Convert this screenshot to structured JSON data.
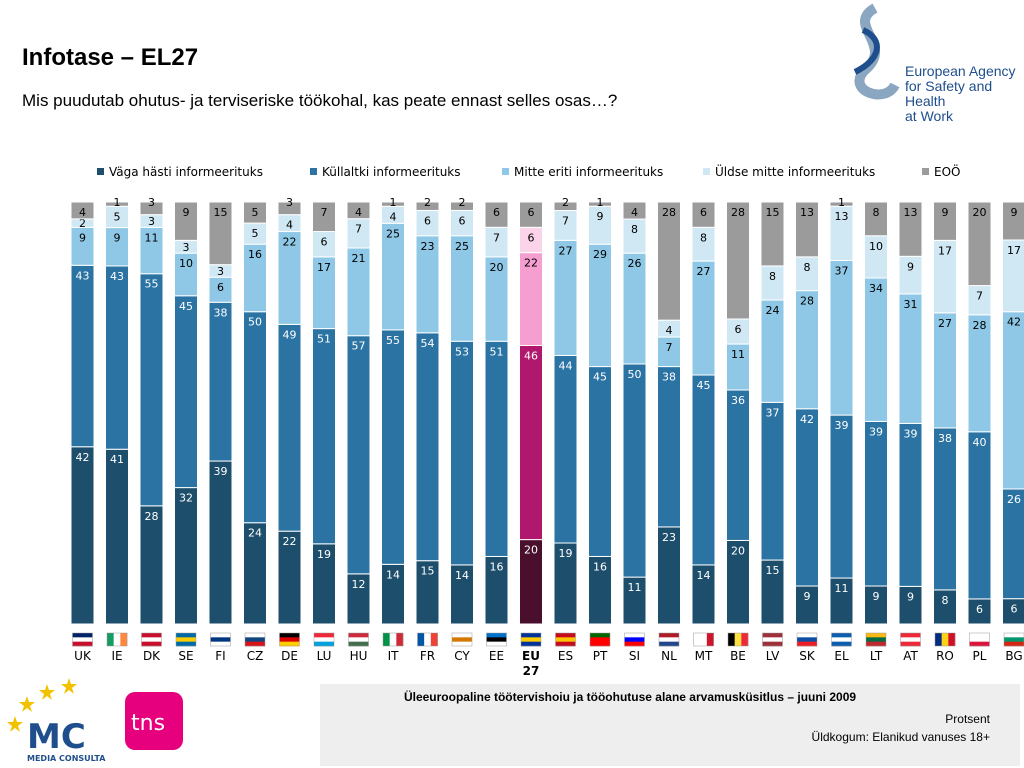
{
  "header": {
    "title": "Infotase – EL27",
    "subtitle": "Mis puudutab ohutus- ja terviseriske töökohal, kas peate ennast selles osas…?"
  },
  "logo": {
    "lines": [
      "European Agency",
      "for Safety and Health",
      "at Work"
    ]
  },
  "footer": {
    "title": "Üleeuroopaline töötervishoiu ja tööohutuse alane arvamusküsitlus – juuni 2009",
    "unit": "Protsent",
    "base": "Üldkogum: Elanikud vanuses 18+",
    "mc_text": "MC",
    "mc_sub": "MEDIA CONSULTA",
    "tns_text": "tns"
  },
  "chart_data": {
    "type": "bar",
    "stacked": true,
    "percent_stack": true,
    "legend_position": "top",
    "categories": [
      "UK",
      "IE",
      "DK",
      "SE",
      "FI",
      "CZ",
      "DE",
      "LU",
      "HU",
      "IT",
      "FR",
      "CY",
      "EE",
      "EU 27",
      "ES",
      "PT",
      "SI",
      "NL",
      "MT",
      "BE",
      "LV",
      "SK",
      "EL",
      "LT",
      "AT",
      "RO",
      "PL",
      "BG"
    ],
    "highlight_category": "EU 27",
    "series": [
      {
        "name": "Väga hästi informeeritud",
        "color": "#1d4e6c",
        "highlight_color": "#4a0f2c",
        "values": [
          42,
          41,
          28,
          32,
          39,
          24,
          22,
          19,
          12,
          14,
          15,
          14,
          16,
          20,
          19,
          16,
          11,
          23,
          14,
          20,
          15,
          9,
          11,
          9,
          9,
          8,
          6,
          6
        ]
      },
      {
        "name": "Küllaltki informeeritud",
        "color": "#2a73a3",
        "highlight_color": "#b0186d",
        "values": [
          43,
          43,
          55,
          45,
          38,
          50,
          49,
          51,
          57,
          55,
          54,
          53,
          51,
          46,
          44,
          45,
          50,
          38,
          45,
          36,
          37,
          42,
          39,
          39,
          39,
          38,
          40,
          26
        ]
      },
      {
        "name": "Mitte eriti informeeritud",
        "color": "#8ec8e6",
        "highlight_color": "#f59fd0",
        "values": [
          9,
          9,
          11,
          10,
          6,
          16,
          22,
          17,
          21,
          25,
          23,
          25,
          20,
          22,
          27,
          29,
          26,
          7,
          27,
          11,
          24,
          28,
          37,
          34,
          31,
          27,
          28,
          42
        ]
      },
      {
        "name": "Üldse mitte informeeritud",
        "color": "#d0e8f4",
        "highlight_color": "#fbd4ea",
        "values": [
          2,
          5,
          3,
          3,
          3,
          5,
          4,
          6,
          7,
          4,
          6,
          6,
          7,
          6,
          7,
          9,
          8,
          4,
          8,
          6,
          8,
          8,
          13,
          10,
          9,
          17,
          7,
          17
        ]
      },
      {
        "name": "EOÖ",
        "color": "#9b9b9b",
        "highlight_color": "#9b9b9b",
        "values": [
          4,
          1,
          3,
          9,
          15,
          5,
          3,
          7,
          4,
          1,
          2,
          2,
          6,
          6,
          2,
          1,
          4,
          28,
          6,
          28,
          15,
          13,
          1,
          8,
          13,
          9,
          20,
          9
        ]
      }
    ],
    "legend_labels": [
      "Väga hästi informeerituks",
      "Küllaltki informeerituks",
      "Mitte eriti informeerituks",
      "Üldse mitte informeerituks",
      "EOÖ"
    ],
    "ylim": [
      0,
      100
    ]
  }
}
